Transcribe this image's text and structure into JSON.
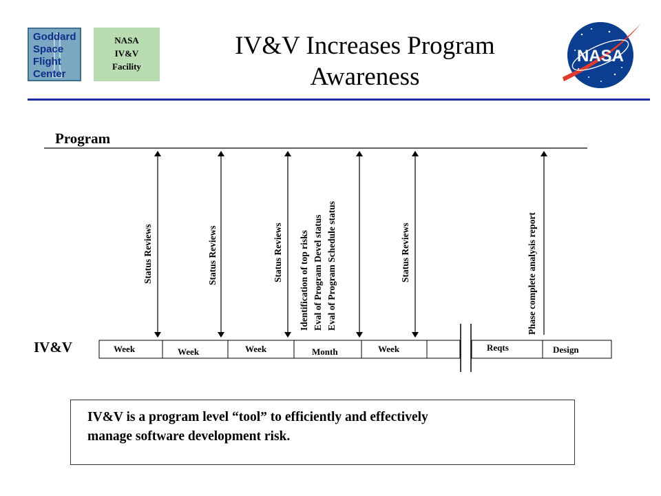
{
  "header": {
    "goddard_logo": {
      "lines": [
        "Goddard",
        "Space",
        "Flight",
        "Center"
      ]
    },
    "facility_badge": {
      "lines": [
        "NASA",
        "IV&V",
        "Facility"
      ]
    },
    "title_lines": [
      "IV&V Increases Program",
      "Awareness"
    ],
    "nasa_logo_text": "NASA",
    "accent_color": "#1c2fa8"
  },
  "timeline": {
    "program_label": "Program",
    "ivv_label": "IV&V",
    "arrows": [
      {
        "lines": [
          "Status Reviews"
        ]
      },
      {
        "lines": [
          "Status Reviews"
        ]
      },
      {
        "lines": [
          "Status Reviews"
        ]
      },
      {
        "lines": [
          "Identification of top risks",
          "Eval of Program Devel status",
          "Eval of Program Schedule status"
        ]
      },
      {
        "lines": [
          "Status Reviews"
        ]
      },
      {
        "lines": [
          "Phase complete analysis report"
        ]
      }
    ],
    "cells_left": [
      "Week",
      "Week",
      "Week",
      "Month",
      "Week",
      ""
    ],
    "cells_right": [
      "Reqts",
      "Design"
    ]
  },
  "summary": {
    "lines": [
      "IV&V is a program level “tool” to efficiently and effectively",
      "manage software development risk."
    ]
  }
}
